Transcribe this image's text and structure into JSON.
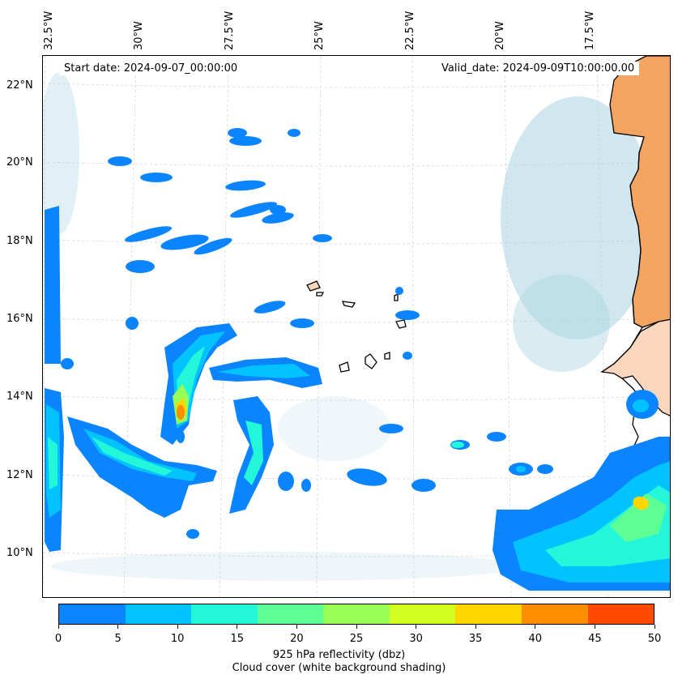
{
  "info": {
    "start_date": "Start date: 2024-09-07_00:00:00",
    "valid_date": "Valid_date: 2024-09-09T10:00:00.00"
  },
  "axes": {
    "lon_labels": [
      "32.5°W",
      "30°W",
      "27.5°W",
      "25°W",
      "22.5°W",
      "20°W",
      "17.5°W"
    ],
    "lat_labels": [
      "22°N",
      "20°N",
      "18°N",
      "16°N",
      "14°N",
      "12°N",
      "10°N"
    ]
  },
  "colorbar": {
    "title_line1": "925 hPa reflectivity (dbz)",
    "title_line2": "Cloud cover (white background shading)",
    "ticks": [
      "0",
      "5",
      "10",
      "15",
      "20",
      "25",
      "30",
      "35",
      "40",
      "45",
      "50"
    ],
    "colors": [
      "#0a84ff",
      "#00c3ff",
      "#22f7d9",
      "#5dff95",
      "#97ff55",
      "#d2ff1f",
      "#ffd500",
      "#ff8d00",
      "#ff4a00"
    ]
  },
  "map_colors": {
    "land_sahara": "#f4a461",
    "land_sahel": "#fbd6bf",
    "cloud": "#aad4e2",
    "coastline": "#000000"
  }
}
